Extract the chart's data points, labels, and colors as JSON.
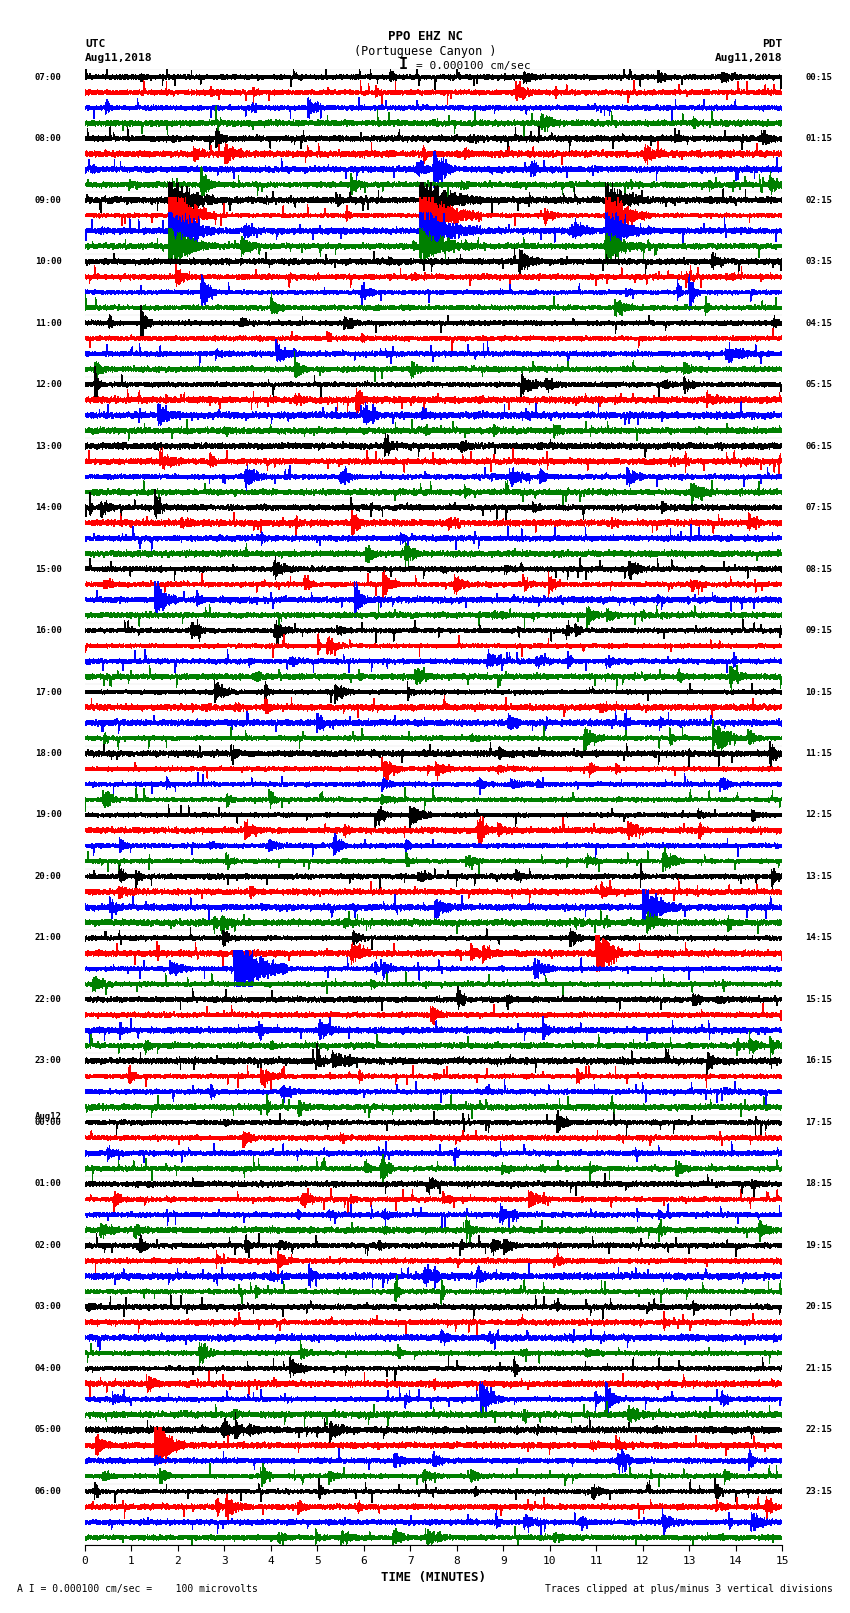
{
  "title_line1": "PPO EHZ NC",
  "title_line2": "(Portuguese Canyon )",
  "title_line3": "I = 0.000100 cm/sec",
  "utc_label": "UTC",
  "utc_date": "Aug11,2018",
  "pdt_label": "PDT",
  "pdt_date": "Aug11,2018",
  "xlabel": "TIME (MINUTES)",
  "footer_left": "A I = 0.000100 cm/sec =    100 microvolts",
  "footer_right": "Traces clipped at plus/minus 3 vertical divisions",
  "left_times": [
    "07:00",
    "08:00",
    "09:00",
    "10:00",
    "11:00",
    "12:00",
    "13:00",
    "14:00",
    "15:00",
    "16:00",
    "17:00",
    "18:00",
    "19:00",
    "20:00",
    "21:00",
    "22:00",
    "23:00",
    "Aug12\n00:00",
    "01:00",
    "02:00",
    "03:00",
    "04:00",
    "05:00",
    "06:00"
  ],
  "right_times": [
    "00:15",
    "01:15",
    "02:15",
    "03:15",
    "04:15",
    "05:15",
    "06:15",
    "07:15",
    "08:15",
    "09:15",
    "10:15",
    "11:15",
    "12:15",
    "13:15",
    "14:15",
    "15:15",
    "16:15",
    "17:15",
    "18:15",
    "19:15",
    "20:15",
    "21:15",
    "22:15",
    "23:15"
  ],
  "n_rows": 24,
  "n_traces_per_row": 4,
  "colors": [
    "black",
    "red",
    "blue",
    "green"
  ],
  "bg_color": "white",
  "xticks": [
    0,
    1,
    2,
    3,
    4,
    5,
    6,
    7,
    8,
    9,
    10,
    11,
    12,
    13,
    14,
    15
  ],
  "xlim": [
    0,
    15
  ],
  "seed": 42
}
